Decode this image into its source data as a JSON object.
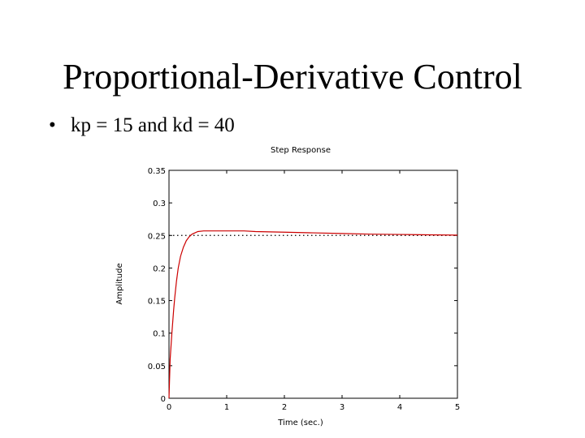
{
  "slide": {
    "title": "Proportional-Derivative Control",
    "bullet": "kp = 15 and kd = 40",
    "bullet_symbol": "•"
  },
  "chart_data": {
    "type": "line",
    "title": "Step Response",
    "xlabel": "Time (sec.)",
    "ylabel": "Amplitude",
    "xlim": [
      0,
      5
    ],
    "ylim": [
      0,
      0.35
    ],
    "xticks": [
      0,
      1,
      2,
      3,
      4,
      5
    ],
    "xtick_labels": [
      "0",
      "1",
      "2",
      "3",
      "4",
      "5"
    ],
    "yticks": [
      0,
      0.05,
      0.1,
      0.15,
      0.2,
      0.25,
      0.3,
      0.35
    ],
    "ytick_labels": [
      "0",
      "0.05",
      "0.1",
      "0.15",
      "0.2",
      "0.25",
      "0.3",
      "0.35"
    ],
    "grid": false,
    "series": [
      {
        "color": "#cc0000",
        "x": [
          0,
          0.02,
          0.05,
          0.08,
          0.1,
          0.13,
          0.16,
          0.2,
          0.25,
          0.3,
          0.35,
          0.4,
          0.5,
          0.6,
          0.8,
          1.0,
          1.3,
          1.5,
          2.0,
          2.5,
          3.0,
          3.5,
          4.0,
          4.5,
          5.0
        ],
        "y": [
          0,
          0.06,
          0.1,
          0.135,
          0.155,
          0.18,
          0.2,
          0.218,
          0.232,
          0.242,
          0.248,
          0.252,
          0.256,
          0.257,
          0.257,
          0.257,
          0.257,
          0.256,
          0.255,
          0.254,
          0.253,
          0.252,
          0.2515,
          0.251,
          0.2505
        ]
      }
    ],
    "reference_line": {
      "y": 0.25,
      "style": "dotted",
      "color": "#000000"
    }
  }
}
